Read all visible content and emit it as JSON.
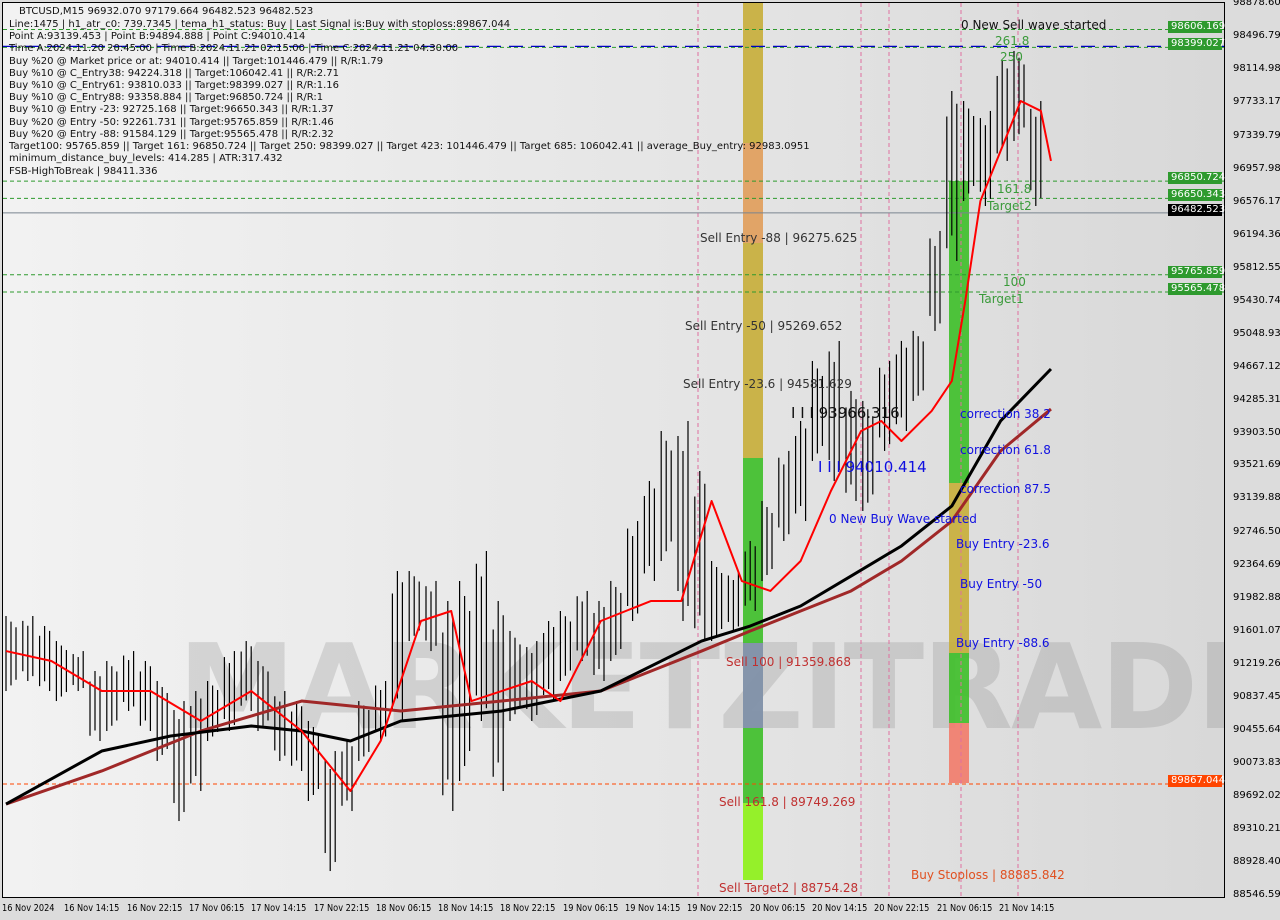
{
  "header": {
    "title": "BTCUSD,M15  96932.070 97179.664 96482.523 96482.523",
    "lines": [
      "Line:1475 | h1_atr_c0: 739.7345 | tema_h1_status: Buy | Last Signal is:Buy with stoploss:89867.044",
      "Point A:93139.453 | Point B:94894.888 | Point C:94010.414",
      "Time A:2024.11.20 20:45:00 | Time B:2024.11.21 02:15:00 | Time C:2024.11.21 04:30:00",
      "Buy %20 @ Market price or at: 94010.414 || Target:101446.479 || R/R:1.79",
      "Buy %10 @ C_Entry38: 94224.318 || Target:106042.41 || R/R:2.71",
      "Buy %10 @ C_Entry61: 93810.033 || Target:98399.027 || R/R:1.16",
      "Buy %10 @ C_Entry88: 93358.884 || Target:96850.724 || R/R:1",
      "Buy %10 @ Entry -23: 92725.168 || Target:96650.343 || R/R:1.37",
      "Buy %20 @ Entry -50: 92261.731 || Target:95765.859 || R/R:1.46",
      "Buy %20 @ Entry -88: 91584.129 || Target:95565.478 || R/R:2.32",
      "Target100: 95765.859 || Target 161: 96850.724 || Target 250: 98399.027 || Target 423: 101446.479 || Target 685: 106042.41 || average_Buy_entry: 92983.0951",
      "minimum_distance_buy_levels: 414.285 | ATR:317.432"
    ],
    "fsb": "FSB-HighToBreak | 98411.336"
  },
  "watermark": "MARKETZITRADE",
  "chart_data": {
    "type": "candlestick",
    "symbol": "BTCUSD",
    "timeframe": "M15",
    "ylim": [
      88546.59,
      98878.6
    ],
    "y_ticks": [
      "98878.600",
      "98496.790",
      "98114.980",
      "97733.170",
      "97339.790",
      "96957.980",
      "96576.170",
      "96194.360",
      "95812.550",
      "95430.740",
      "95048.930",
      "94667.120",
      "94285.310",
      "93903.500",
      "93521.690",
      "93139.880",
      "92746.500",
      "92364.690",
      "91982.880",
      "91601.070",
      "91219.260",
      "90837.450",
      "90455.640",
      "90073.830",
      "89692.020",
      "89310.210",
      "88928.400",
      "88546.590"
    ],
    "x_ticks": [
      "16 Nov 2024",
      "16 Nov 14:15",
      "16 Nov 22:15",
      "17 Nov 06:15",
      "17 Nov 14:15",
      "17 Nov 22:15",
      "18 Nov 06:15",
      "18 Nov 14:15",
      "18 Nov 22:15",
      "19 Nov 06:15",
      "19 Nov 14:15",
      "19 Nov 22:15",
      "20 Nov 06:15",
      "20 Nov 14:15",
      "20 Nov 22:15",
      "21 Nov 06:15",
      "21 Nov 14:15"
    ],
    "current_price": "96482.523",
    "highs": [
      91813,
      91813,
      91697,
      91523,
      91407,
      91176,
      91292,
      91407,
      91292,
      91060,
      90828,
      90944,
      91060,
      91407,
      91523,
      91292,
      90944,
      90828,
      90597,
      90249,
      90365,
      90828,
      91060,
      92334,
      92334,
      92219,
      91987,
      92219,
      92566,
      91987,
      91640,
      91523,
      91755,
      91871,
      92103,
      91987,
      92219,
      92913,
      93377,
      93956,
      94072,
      93493,
      92450,
      92334,
      92682,
      93145,
      93725,
      94072,
      94767,
      94999,
      94420,
      94304,
      94767,
      94999,
      95115,
      96273,
      97894,
      97778,
      97663,
      98242,
      98358,
      97778
    ],
    "lows": [
      90944,
      91060,
      90944,
      90828,
      90944,
      90365,
      90481,
      90713,
      90481,
      90134,
      89438,
      89786,
      90365,
      90481,
      90713,
      90481,
      90134,
      90018,
      89670,
      88859,
      89554,
      90134,
      90365,
      90597,
      91523,
      91407,
      89554,
      89902,
      90597,
      89786,
      90597,
      90597,
      90828,
      91060,
      91292,
      91060,
      91292,
      91755,
      92219,
      92450,
      91755,
      91523,
      91523,
      91640,
      91871,
      92218,
      92682,
      92913,
      93609,
      93377,
      93145,
      93030,
      93725,
      93956,
      94304,
      95115,
      95925,
      96620,
      96562,
      97084,
      97315,
      96562
    ],
    "ma_black": [
      [
        0,
        89635
      ],
      [
        5.7,
        90249
      ],
      [
        9.8,
        90423
      ],
      [
        14.6,
        90539
      ],
      [
        17.6,
        90481
      ],
      [
        20.5,
        90365
      ],
      [
        23.5,
        90597
      ],
      [
        29.5,
        90713
      ],
      [
        35.4,
        90944
      ],
      [
        41.4,
        91523
      ],
      [
        44.3,
        91697
      ],
      [
        47.3,
        91929
      ],
      [
        50.3,
        92276
      ],
      [
        53.3,
        92624
      ],
      [
        56.3,
        93087
      ],
      [
        59.2,
        94072
      ],
      [
        62.2,
        94674
      ]
    ],
    "ma_brown": [
      [
        0,
        89635
      ],
      [
        5.7,
        90018
      ],
      [
        11.6,
        90481
      ],
      [
        17.6,
        90828
      ],
      [
        23.5,
        90713
      ],
      [
        29.5,
        90828
      ],
      [
        35.4,
        90944
      ],
      [
        41.4,
        91407
      ],
      [
        44.3,
        91639
      ],
      [
        47.3,
        91871
      ],
      [
        50.3,
        92103
      ],
      [
        53.3,
        92450
      ],
      [
        56.3,
        92913
      ],
      [
        59.2,
        93724
      ],
      [
        62.2,
        94210
      ]
    ],
    "tema_red": [
      [
        0,
        91407
      ],
      [
        2.7,
        91292
      ],
      [
        5.7,
        90944
      ],
      [
        8.6,
        90944
      ],
      [
        11.6,
        90597
      ],
      [
        14.6,
        90944
      ],
      [
        17.6,
        90481
      ],
      [
        20.5,
        89786
      ],
      [
        22.3,
        90365
      ],
      [
        24.7,
        91755
      ],
      [
        26.5,
        91871
      ],
      [
        27.7,
        90828
      ],
      [
        29.5,
        90944
      ],
      [
        31.3,
        91060
      ],
      [
        33,
        90828
      ],
      [
        35.4,
        91755
      ],
      [
        38.4,
        91987
      ],
      [
        40.2,
        91987
      ],
      [
        42,
        93145
      ],
      [
        43.8,
        92218
      ],
      [
        45.5,
        92103
      ],
      [
        47.3,
        92450
      ],
      [
        49.1,
        93261
      ],
      [
        50.9,
        93956
      ],
      [
        52.1,
        94072
      ],
      [
        53.3,
        93840
      ],
      [
        55.1,
        94188
      ],
      [
        56.3,
        94535
      ],
      [
        57.1,
        95462
      ],
      [
        58,
        96620
      ],
      [
        59.2,
        97199
      ],
      [
        60.4,
        97778
      ],
      [
        61.6,
        97663
      ],
      [
        62.2,
        97084
      ]
    ],
    "levels": [
      {
        "price": 98606.169,
        "label": "98606.169",
        "color": "#2e9a2e"
      },
      {
        "price": 98399.027,
        "label": "98399.027",
        "color": "#2e9a2e"
      },
      {
        "price": 96850.724,
        "label": "96850.724",
        "color": "#2e9a2e"
      },
      {
        "price": 96650.343,
        "label": "96650.343",
        "color": "#2e9a2e"
      },
      {
        "price": 96482.523,
        "label": "96482.523",
        "color": "#000000"
      },
      {
        "price": 95765.859,
        "label": "95765.859",
        "color": "#2e9a2e"
      },
      {
        "price": 95565.478,
        "label": "95565.478",
        "color": "#2e9a2e"
      },
      {
        "price": 89867.044,
        "label": "89867.044",
        "color": "#ff4500"
      }
    ],
    "annotations": {
      "sell_wave": "0 New Sell wave started",
      "fib_2618": "261.8",
      "fib_250": "250",
      "fib_1618": "161.8",
      "target2": "Target2",
      "fib_100": "100",
      "target1": "Target1",
      "sell_entry_88": "Sell Entry -88 | 96275.625",
      "sell_entry_50": "Sell Entry -50 | 95269.652",
      "sell_entry_236": "Sell Entry -23.6 | 94581.629",
      "point_b": "I I I 93966.316",
      "point_c": "I I I 94010.414",
      "correction_382": "correction 38.2",
      "correction_618": "correction 61.8",
      "correction_875": "correction 87.5",
      "buy_wave": "0 New Buy Wave started",
      "buy_entry_236": "Buy Entry -23.6",
      "buy_entry_50": "Buy Entry -50",
      "buy_entry_886": "Buy Entry -88.6",
      "sell_100": "Sell 100 | 91359.868",
      "sell_1618": "Sell 161.8 | 89749.269",
      "sell_target2": "Sell Target2 | 88754.28",
      "buy_stoploss": "Buy Stoploss | 88885.842"
    },
    "colors": {
      "bull_zone": "#44c030",
      "neutral_zone": "#c8b040",
      "stop_zone": "#f08070",
      "target_zone": "#90f020",
      "sell_text": "#c03030",
      "buy_text": "#1010e0",
      "fib_text": "#3a9a3a"
    }
  }
}
